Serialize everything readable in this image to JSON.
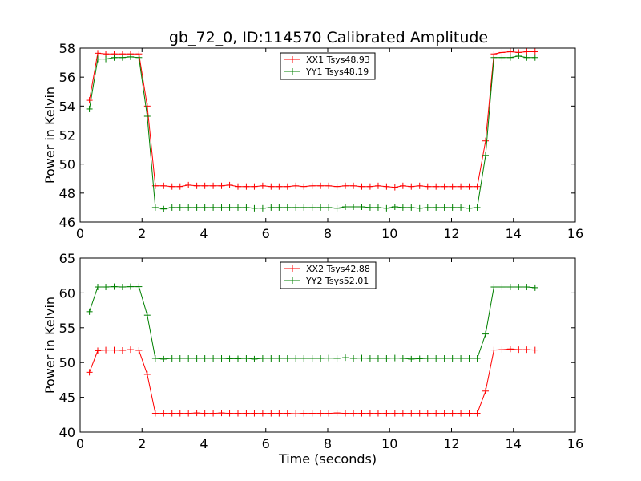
{
  "title": "gb_72_0, ID:114570 Calibrated Amplitude",
  "chart_data": [
    {
      "type": "line",
      "title": "gb_72_0, ID:114570 Calibrated Amplitude",
      "xlabel": "",
      "ylabel": "Power in Kelvin",
      "xlim": [
        0,
        16
      ],
      "ylim": [
        46,
        58
      ],
      "xticks": [
        "0",
        "2",
        "4",
        "6",
        "8",
        "10",
        "12",
        "14",
        "16"
      ],
      "yticks": [
        "46",
        "48",
        "50",
        "52",
        "54",
        "56",
        "58"
      ],
      "legend_position": "top-center",
      "grid": false,
      "x": [
        0.3,
        0.57,
        0.83,
        1.1,
        1.37,
        1.63,
        1.9,
        2.17,
        2.43,
        2.7,
        2.97,
        3.23,
        3.5,
        3.77,
        4.03,
        4.3,
        4.57,
        4.83,
        5.1,
        5.37,
        5.63,
        5.9,
        6.17,
        6.43,
        6.7,
        6.97,
        7.23,
        7.5,
        7.77,
        8.03,
        8.3,
        8.57,
        8.83,
        9.1,
        9.37,
        9.63,
        9.9,
        10.17,
        10.43,
        10.7,
        10.97,
        11.23,
        11.5,
        11.77,
        12.03,
        12.3,
        12.57,
        12.83,
        13.1,
        13.37,
        13.63,
        13.9,
        14.17,
        14.43,
        14.7
      ],
      "series": [
        {
          "name": "XX1 Tsys48.93",
          "color": "#ff0000",
          "values": [
            54.4,
            57.65,
            57.6,
            57.6,
            57.6,
            57.6,
            57.6,
            54.0,
            48.5,
            48.5,
            48.45,
            48.45,
            48.55,
            48.5,
            48.5,
            48.5,
            48.5,
            48.55,
            48.45,
            48.45,
            48.45,
            48.5,
            48.45,
            48.45,
            48.45,
            48.5,
            48.45,
            48.5,
            48.5,
            48.5,
            48.45,
            48.5,
            48.5,
            48.45,
            48.45,
            48.5,
            48.45,
            48.4,
            48.5,
            48.45,
            48.5,
            48.45,
            48.45,
            48.45,
            48.45,
            48.45,
            48.45,
            48.45,
            51.6,
            57.6,
            57.7,
            57.75,
            57.7,
            57.75,
            57.75
          ]
        },
        {
          "name": "YY1 Tsys48.19",
          "color": "#008000",
          "values": [
            53.8,
            57.25,
            57.25,
            57.35,
            57.35,
            57.4,
            57.35,
            53.3,
            47.0,
            46.9,
            47.0,
            47.0,
            47.0,
            47.0,
            47.0,
            47.0,
            47.0,
            47.0,
            47.0,
            47.0,
            46.95,
            46.95,
            47.0,
            47.0,
            47.0,
            47.0,
            47.0,
            47.0,
            47.0,
            47.0,
            46.95,
            47.05,
            47.05,
            47.05,
            47.0,
            47.0,
            46.95,
            47.05,
            47.0,
            47.0,
            46.95,
            47.0,
            47.0,
            47.0,
            47.0,
            47.0,
            46.95,
            47.0,
            50.6,
            57.35,
            57.35,
            57.35,
            57.45,
            57.35,
            57.35
          ]
        }
      ]
    },
    {
      "type": "line",
      "title": "",
      "xlabel": "Time (seconds)",
      "ylabel": "Power in Kelvin",
      "xlim": [
        0,
        16
      ],
      "ylim": [
        40,
        65
      ],
      "xticks": [
        "0",
        "2",
        "4",
        "6",
        "8",
        "10",
        "12",
        "14",
        "16"
      ],
      "yticks": [
        "40",
        "45",
        "50",
        "55",
        "60",
        "65"
      ],
      "legend_position": "top-center",
      "grid": false,
      "x": [
        0.3,
        0.57,
        0.83,
        1.1,
        1.37,
        1.63,
        1.9,
        2.17,
        2.43,
        2.7,
        2.97,
        3.23,
        3.5,
        3.77,
        4.03,
        4.3,
        4.57,
        4.83,
        5.1,
        5.37,
        5.63,
        5.9,
        6.17,
        6.43,
        6.7,
        6.97,
        7.23,
        7.5,
        7.77,
        8.03,
        8.3,
        8.57,
        8.83,
        9.1,
        9.37,
        9.63,
        9.9,
        10.17,
        10.43,
        10.7,
        10.97,
        11.23,
        11.5,
        11.77,
        12.03,
        12.3,
        12.57,
        12.83,
        13.1,
        13.37,
        13.63,
        13.9,
        14.17,
        14.43,
        14.7
      ],
      "series": [
        {
          "name": "XX2 Tsys42.88",
          "color": "#ff0000",
          "values": [
            48.6,
            51.7,
            51.8,
            51.8,
            51.75,
            51.85,
            51.75,
            48.3,
            42.7,
            42.7,
            42.7,
            42.7,
            42.7,
            42.75,
            42.7,
            42.7,
            42.75,
            42.7,
            42.7,
            42.7,
            42.7,
            42.7,
            42.7,
            42.7,
            42.7,
            42.65,
            42.7,
            42.7,
            42.7,
            42.7,
            42.75,
            42.7,
            42.7,
            42.7,
            42.7,
            42.7,
            42.7,
            42.7,
            42.7,
            42.7,
            42.7,
            42.7,
            42.7,
            42.7,
            42.7,
            42.7,
            42.7,
            42.7,
            45.9,
            51.8,
            51.85,
            51.95,
            51.85,
            51.85,
            51.8
          ]
        },
        {
          "name": "YY2 Tsys52.01",
          "color": "#008000",
          "values": [
            57.3,
            60.85,
            60.85,
            60.9,
            60.85,
            60.9,
            60.9,
            56.8,
            50.6,
            50.5,
            50.6,
            50.6,
            50.6,
            50.6,
            50.6,
            50.6,
            50.6,
            50.55,
            50.55,
            50.6,
            50.5,
            50.6,
            50.6,
            50.6,
            50.6,
            50.6,
            50.6,
            50.6,
            50.6,
            50.65,
            50.6,
            50.7,
            50.6,
            50.65,
            50.6,
            50.6,
            50.6,
            50.65,
            50.6,
            50.5,
            50.55,
            50.6,
            50.6,
            50.6,
            50.6,
            50.6,
            50.6,
            50.6,
            54.1,
            60.85,
            60.85,
            60.85,
            60.85,
            60.85,
            60.75
          ]
        }
      ]
    }
  ]
}
